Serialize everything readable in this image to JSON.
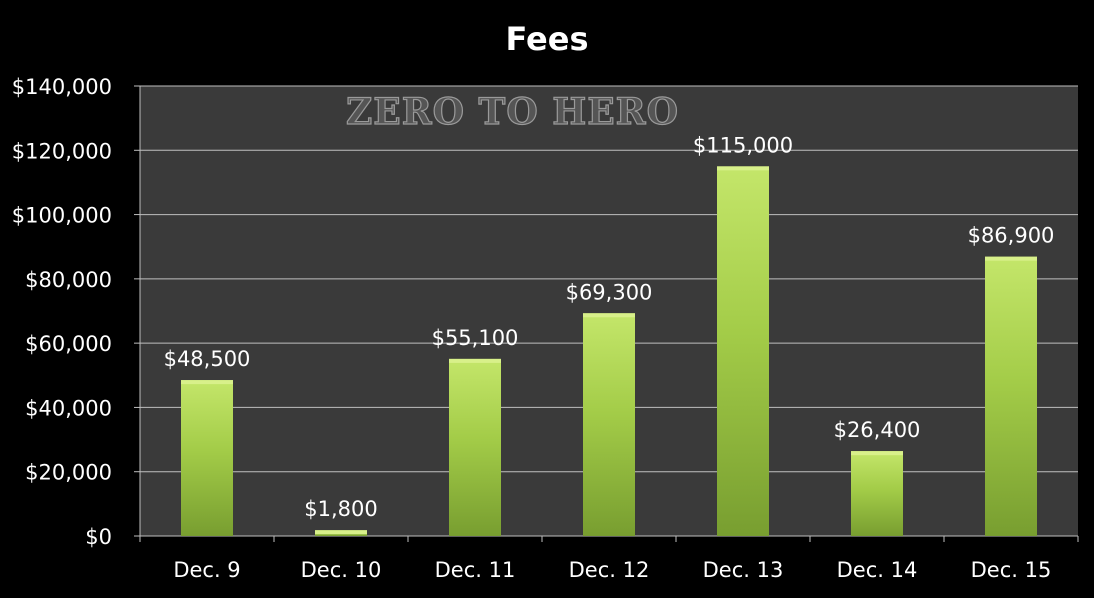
{
  "watermark": "ZERO TO HERO",
  "colors": {
    "background": "#000000",
    "plot_area": "#3a3a3a",
    "bar_light": "#b7dc5a",
    "bar_dark": "#7aa232",
    "gridline": "#bfbfbf",
    "text": "#ffffff"
  },
  "chart_data": {
    "type": "bar",
    "title": "Fees",
    "xlabel": "",
    "ylabel": "",
    "categories": [
      "Dec. 9",
      "Dec. 10",
      "Dec. 11",
      "Dec. 12",
      "Dec. 13",
      "Dec. 14",
      "Dec. 15"
    ],
    "values": [
      48500,
      1800,
      55100,
      69300,
      115000,
      26400,
      86900
    ],
    "data_labels": [
      "$48,500",
      "$1,800",
      "$55,100",
      "$69,300",
      "$115,000",
      "$26,400",
      "$86,900"
    ],
    "ylim": [
      0,
      140000
    ],
    "yticks": [
      0,
      20000,
      40000,
      60000,
      80000,
      100000,
      120000,
      140000
    ],
    "ytick_labels": [
      "$0",
      "$20,000",
      "$40,000",
      "$60,000",
      "$80,000",
      "$100,000",
      "$120,000",
      "$140,000"
    ],
    "grid": true,
    "legend": "none"
  }
}
